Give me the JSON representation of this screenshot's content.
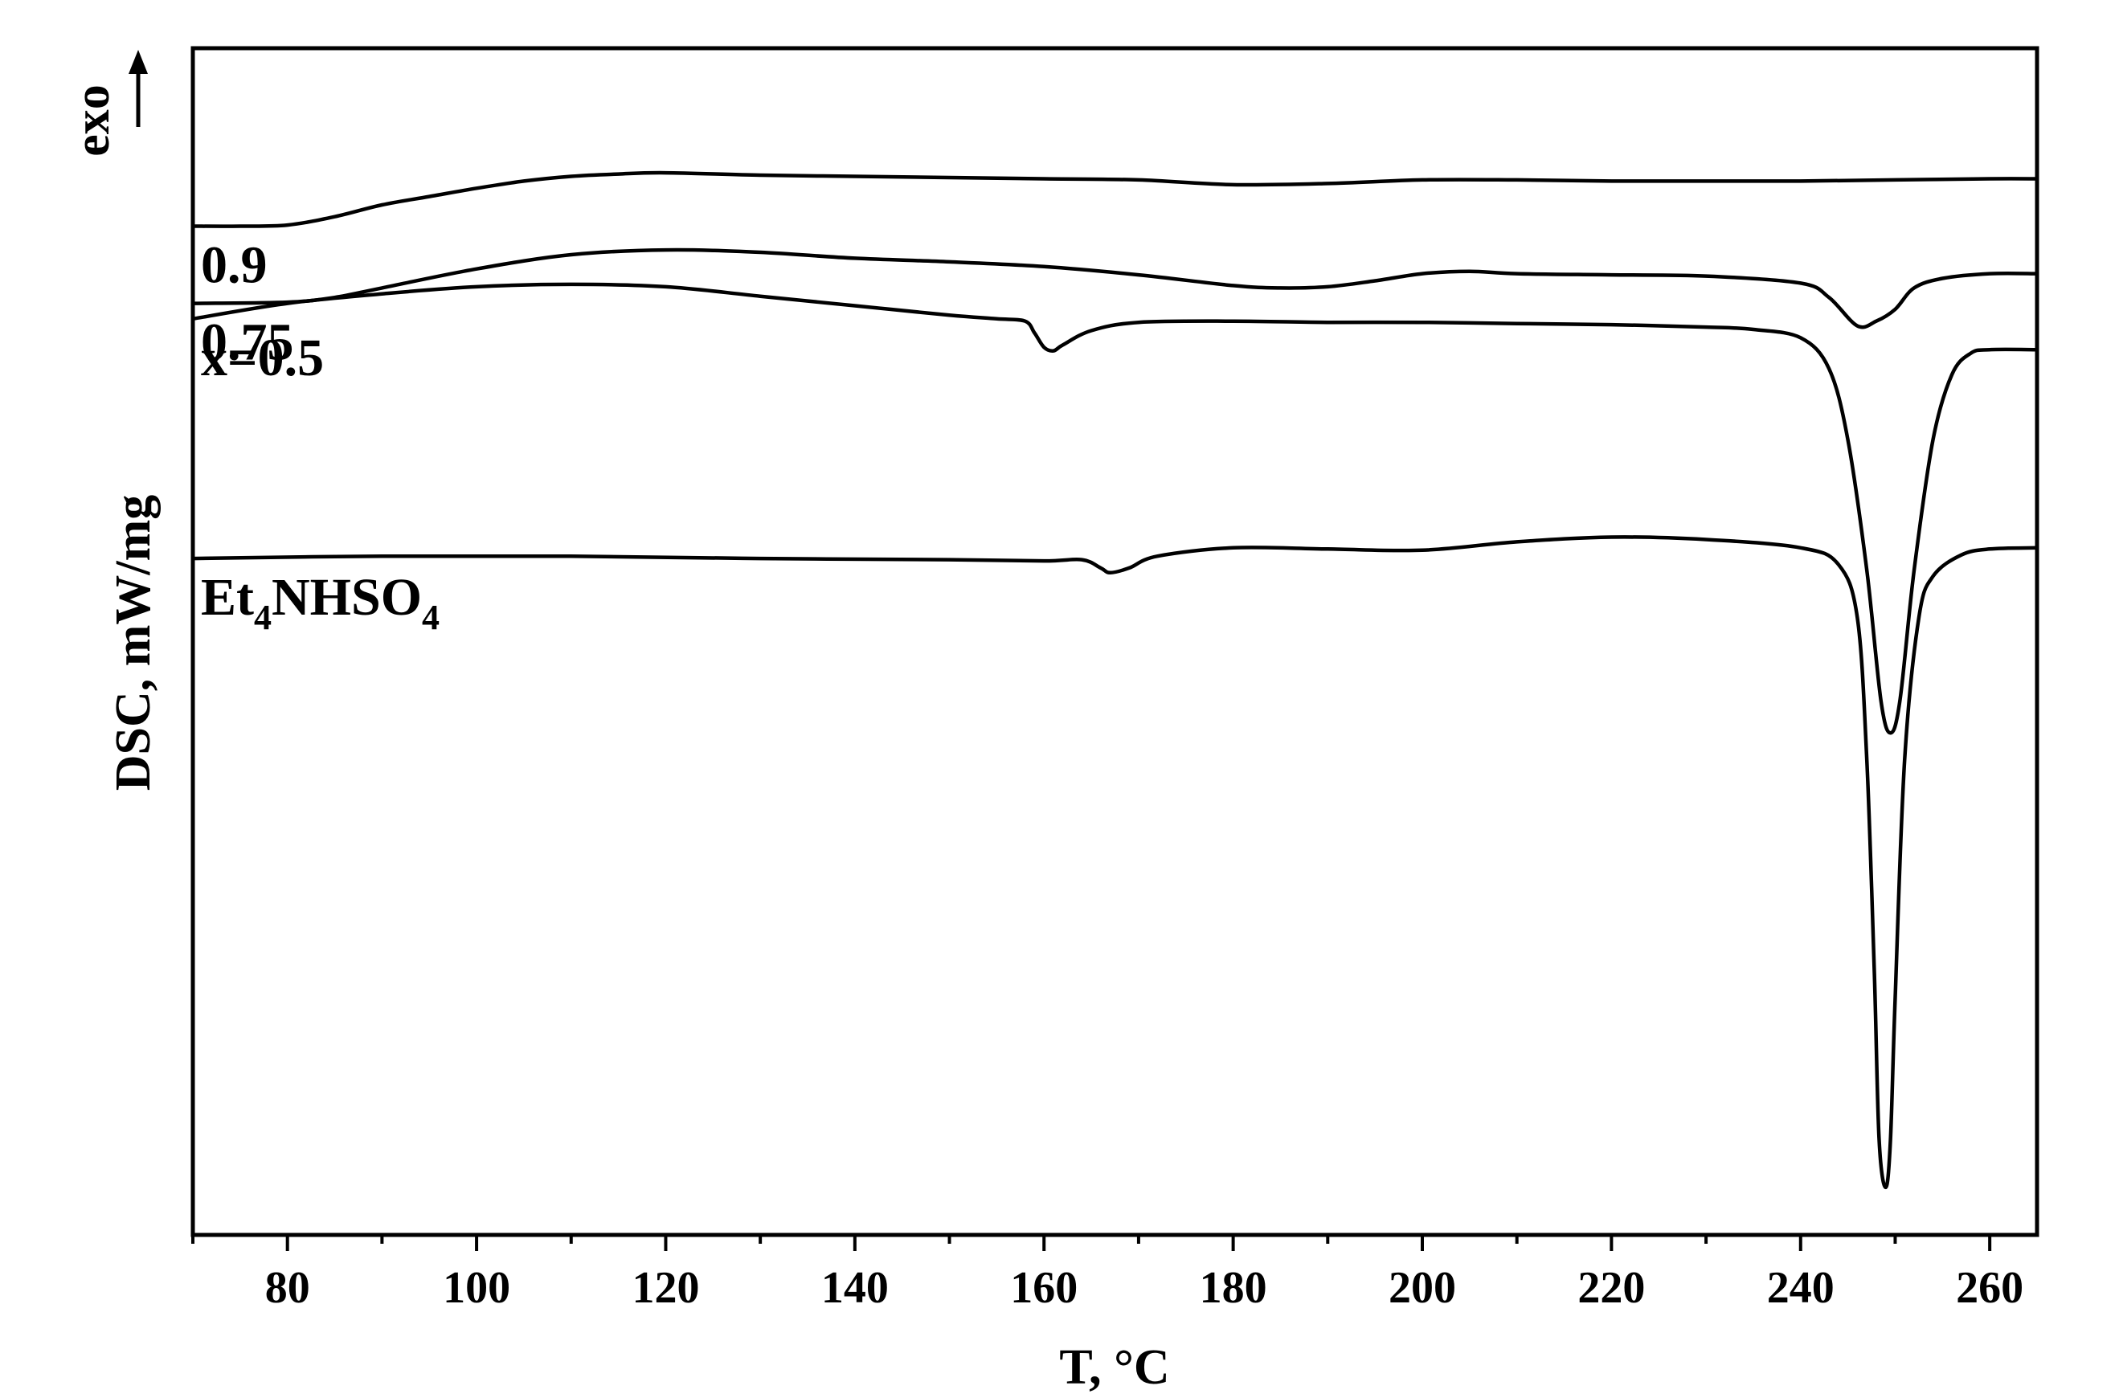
{
  "chart_data": {
    "type": "line",
    "title": "",
    "xlabel": "T, °C",
    "ylabel": "DSC, mW/mg",
    "exo_label": "exo",
    "xlim": [
      70,
      265
    ],
    "ylim": [
      0,
      100
    ],
    "x_ticks": [
      80,
      100,
      120,
      140,
      160,
      180,
      200,
      220,
      240,
      260
    ],
    "x_minor_step": 10,
    "grid": false,
    "series": [
      {
        "name": "0.9",
        "label": {
          "text": "0.9",
          "sub": "",
          "tail": ""
        },
        "points": [
          [
            70,
            85.0
          ],
          [
            75,
            85.0
          ],
          [
            80,
            85.1
          ],
          [
            85,
            85.8
          ],
          [
            90,
            86.8
          ],
          [
            95,
            87.5
          ],
          [
            100,
            88.2
          ],
          [
            105,
            88.8
          ],
          [
            110,
            89.2
          ],
          [
            115,
            89.4
          ],
          [
            120,
            89.5
          ],
          [
            130,
            89.3
          ],
          [
            140,
            89.2
          ],
          [
            150,
            89.1
          ],
          [
            160,
            89.0
          ],
          [
            170,
            88.9
          ],
          [
            180,
            88.5
          ],
          [
            190,
            88.6
          ],
          [
            200,
            88.9
          ],
          [
            210,
            88.9
          ],
          [
            220,
            88.8
          ],
          [
            230,
            88.8
          ],
          [
            240,
            88.8
          ],
          [
            250,
            88.9
          ],
          [
            260,
            89.0
          ],
          [
            265,
            89.0
          ]
        ]
      },
      {
        "name": "0.75",
        "label": {
          "text": "0.75",
          "sub": "",
          "tail": ""
        },
        "points": [
          [
            70,
            78.5
          ],
          [
            80,
            78.6
          ],
          [
            85,
            79.0
          ],
          [
            90,
            79.8
          ],
          [
            100,
            81.4
          ],
          [
            110,
            82.6
          ],
          [
            120,
            83.0
          ],
          [
            130,
            82.8
          ],
          [
            140,
            82.3
          ],
          [
            150,
            82.0
          ],
          [
            160,
            81.6
          ],
          [
            170,
            80.9
          ],
          [
            180,
            80.0
          ],
          [
            185,
            79.8
          ],
          [
            190,
            79.9
          ],
          [
            195,
            80.4
          ],
          [
            200,
            81.0
          ],
          [
            205,
            81.2
          ],
          [
            210,
            81.0
          ],
          [
            220,
            80.9
          ],
          [
            230,
            80.8
          ],
          [
            240,
            80.2
          ],
          [
            243,
            79.0
          ],
          [
            246,
            76.6
          ],
          [
            248,
            77.0
          ],
          [
            250,
            78.0
          ],
          [
            252,
            79.8
          ],
          [
            255,
            80.6
          ],
          [
            260,
            81.0
          ],
          [
            265,
            81.0
          ]
        ]
      },
      {
        "name": "x=0.5",
        "label": {
          "text": "x=0.5",
          "sub": "",
          "tail": ""
        },
        "points": [
          [
            70,
            77.2
          ],
          [
            80,
            78.5
          ],
          [
            90,
            79.3
          ],
          [
            100,
            79.9
          ],
          [
            110,
            80.1
          ],
          [
            120,
            79.9
          ],
          [
            130,
            79.1
          ],
          [
            140,
            78.3
          ],
          [
            150,
            77.5
          ],
          [
            155,
            77.2
          ],
          [
            158,
            77.0
          ],
          [
            159,
            76.0
          ],
          [
            160,
            74.8
          ],
          [
            161,
            74.5
          ],
          [
            162,
            75.0
          ],
          [
            165,
            76.2
          ],
          [
            170,
            76.9
          ],
          [
            180,
            77.0
          ],
          [
            190,
            76.9
          ],
          [
            200,
            76.9
          ],
          [
            210,
            76.8
          ],
          [
            220,
            76.7
          ],
          [
            230,
            76.5
          ],
          [
            235,
            76.3
          ],
          [
            240,
            75.6
          ],
          [
            243,
            73.0
          ],
          [
            245,
            67.0
          ],
          [
            247,
            56.0
          ],
          [
            248.5,
            45.0
          ],
          [
            249.5,
            42.3
          ],
          [
            250.5,
            45.0
          ],
          [
            252,
            56.0
          ],
          [
            254,
            67.0
          ],
          [
            256,
            72.5
          ],
          [
            258,
            74.3
          ],
          [
            260,
            74.6
          ],
          [
            265,
            74.6
          ]
        ]
      },
      {
        "name": "Et4NHSO4",
        "label": {
          "text": "Et",
          "sub": "4",
          "tail": "NHSO4"
        },
        "points": [
          [
            70,
            57.0
          ],
          [
            90,
            57.2
          ],
          [
            110,
            57.2
          ],
          [
            130,
            57.0
          ],
          [
            150,
            56.9
          ],
          [
            160,
            56.8
          ],
          [
            164,
            56.9
          ],
          [
            166,
            56.2
          ],
          [
            167,
            55.8
          ],
          [
            169,
            56.2
          ],
          [
            172,
            57.2
          ],
          [
            180,
            57.9
          ],
          [
            190,
            57.8
          ],
          [
            200,
            57.7
          ],
          [
            210,
            58.4
          ],
          [
            220,
            58.8
          ],
          [
            230,
            58.6
          ],
          [
            240,
            57.9
          ],
          [
            244,
            56.5
          ],
          [
            246,
            52.0
          ],
          [
            247,
            40.0
          ],
          [
            247.8,
            22.0
          ],
          [
            248.3,
            8.0
          ],
          [
            249,
            4.0
          ],
          [
            249.5,
            8.0
          ],
          [
            250,
            20.0
          ],
          [
            251,
            40.0
          ],
          [
            252.5,
            52.0
          ],
          [
            254,
            55.5
          ],
          [
            257,
            57.3
          ],
          [
            260,
            57.8
          ],
          [
            265,
            57.9
          ]
        ]
      }
    ]
  }
}
